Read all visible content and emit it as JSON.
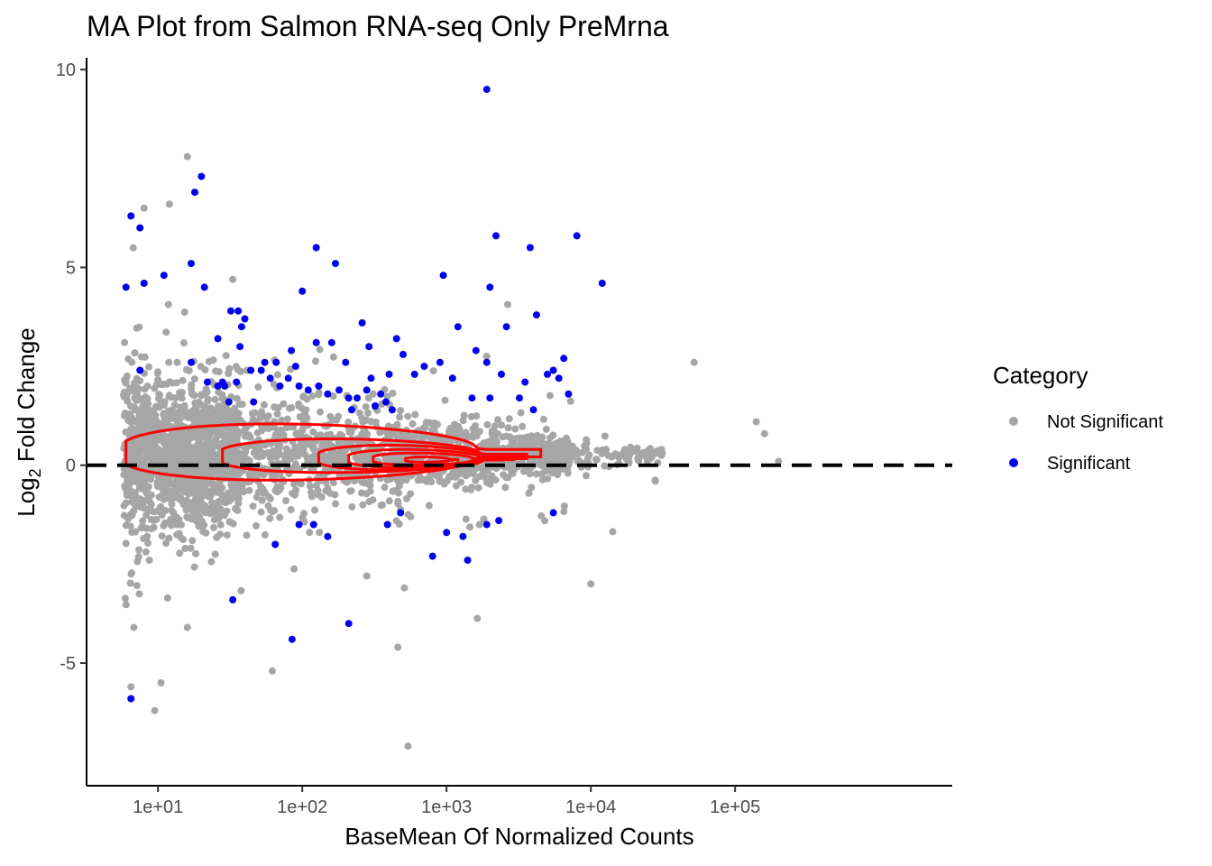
{
  "chart_data": {
    "type": "scatter",
    "title": "MA Plot from Salmon RNA-seq Only PreMrna",
    "xlabel": "BaseMean Of Normalized Counts",
    "ylabel_main": "Log",
    "ylabel_sub": "2",
    "ylabel_rest": " Fold Change",
    "x_scale": "log10",
    "xlim": [
      3.2,
      3200000
    ],
    "ylim": [
      -8.1,
      10.3
    ],
    "x_ticks": [
      {
        "value": 10,
        "label": "1e+01"
      },
      {
        "value": 100,
        "label": "1e+02"
      },
      {
        "value": 1000,
        "label": "1e+03"
      },
      {
        "value": 10000,
        "label": "1e+04"
      },
      {
        "value": 100000,
        "label": "1e+05"
      }
    ],
    "y_ticks": [
      {
        "value": -5,
        "label": "-5"
      },
      {
        "value": 0,
        "label": "0"
      },
      {
        "value": 5,
        "label": "5"
      },
      {
        "value": 10,
        "label": "10"
      }
    ],
    "reference_line": {
      "y": 0,
      "style": "dashed",
      "color": "#000000"
    },
    "grid": false,
    "legend": {
      "title": "Category",
      "position": "right",
      "entries": [
        {
          "label": "Not Significant",
          "color": "#a6a6a6"
        },
        {
          "label": "Significant",
          "color": "#0000ee"
        }
      ]
    },
    "series": [
      {
        "name": "Significant",
        "color": "#0000ee",
        "points": [
          [
            1900,
            9.5
          ],
          [
            20,
            7.3
          ],
          [
            18,
            6.9
          ],
          [
            6.5,
            6.3
          ],
          [
            7.5,
            6.0
          ],
          [
            6,
            4.5
          ],
          [
            2200,
            5.8
          ],
          [
            3800,
            5.5
          ],
          [
            8000,
            5.8
          ],
          [
            12000,
            4.6
          ],
          [
            2000,
            4.5
          ],
          [
            950,
            4.8
          ],
          [
            125,
            5.5
          ],
          [
            170,
            5.1
          ],
          [
            100,
            4.4
          ],
          [
            8,
            4.6
          ],
          [
            11,
            4.8
          ],
          [
            17,
            5.1
          ],
          [
            21,
            4.5
          ],
          [
            36,
            3.9
          ],
          [
            40,
            3.7
          ],
          [
            38,
            3.5
          ],
          [
            32,
            3.9
          ],
          [
            260,
            3.6
          ],
          [
            2600,
            3.5
          ],
          [
            4200,
            3.8
          ],
          [
            1200,
            3.5
          ],
          [
            450,
            3.2
          ],
          [
            290,
            3.0
          ],
          [
            160,
            3.1
          ],
          [
            125,
            3.1
          ],
          [
            84,
            2.9
          ],
          [
            37,
            3.0
          ],
          [
            26,
            3.2
          ],
          [
            17,
            2.6
          ],
          [
            7.5,
            2.4
          ],
          [
            1600,
            2.9
          ],
          [
            1900,
            2.6
          ],
          [
            2400,
            2.3
          ],
          [
            6500,
            2.7
          ],
          [
            5500,
            2.4
          ],
          [
            5000,
            2.3
          ],
          [
            6000,
            2.2
          ],
          [
            3500,
            2.1
          ],
          [
            200,
            2.6
          ],
          [
            300,
            2.2
          ],
          [
            400,
            2.3
          ],
          [
            500,
            2.8
          ],
          [
            600,
            2.3
          ],
          [
            700,
            2.5
          ],
          [
            900,
            2.6
          ],
          [
            1100,
            2.2
          ],
          [
            1500,
            1.7
          ],
          [
            2000,
            1.7
          ],
          [
            3200,
            1.7
          ],
          [
            4000,
            1.4
          ],
          [
            7000,
            1.8
          ],
          [
            44,
            2.4
          ],
          [
            52,
            2.4
          ],
          [
            35,
            2.1
          ],
          [
            29,
            2.0
          ],
          [
            60,
            2.2
          ],
          [
            70,
            2.0
          ],
          [
            80,
            2.2
          ],
          [
            95,
            2.0
          ],
          [
            110,
            1.9
          ],
          [
            130,
            2.0
          ],
          [
            150,
            1.8
          ],
          [
            180,
            1.9
          ],
          [
            210,
            1.7
          ],
          [
            240,
            1.7
          ],
          [
            280,
            1.9
          ],
          [
            320,
            1.5
          ],
          [
            350,
            1.8
          ],
          [
            380,
            1.6
          ],
          [
            420,
            1.4
          ],
          [
            220,
            1.4
          ],
          [
            90,
            2.5
          ],
          [
            66,
            2.6
          ],
          [
            55,
            2.6
          ],
          [
            22,
            2.1
          ],
          [
            26,
            2.0
          ],
          [
            28,
            2.1
          ],
          [
            31,
            1.6
          ],
          [
            46,
            1.6
          ],
          [
            120,
            -1.5
          ],
          [
            95,
            -1.5
          ],
          [
            150,
            -1.8
          ],
          [
            390,
            -1.5
          ],
          [
            480,
            -1.2
          ],
          [
            1000,
            -1.7
          ],
          [
            1300,
            -1.8
          ],
          [
            1900,
            -1.5
          ],
          [
            2300,
            -1.4
          ],
          [
            5500,
            -1.2
          ],
          [
            65,
            -2.0
          ],
          [
            85,
            -4.4
          ],
          [
            33,
            -3.4
          ],
          [
            210,
            -4.0
          ],
          [
            6.5,
            -5.9
          ],
          [
            1400,
            -2.4
          ],
          [
            800,
            -2.3
          ]
        ]
      }
    ],
    "contour": {
      "color": "#ff0000",
      "levels": [
        {
          "x_from": 6.0,
          "x_to": 4500,
          "y_center": 0.3,
          "half_height": 0.75
        },
        {
          "x_from": 28,
          "x_to": 3600,
          "y_center": 0.22,
          "half_height": 0.45
        },
        {
          "x_from": 130,
          "x_to": 2900,
          "y_center": 0.18,
          "half_height": 0.33
        },
        {
          "x_from": 210,
          "x_to": 2500,
          "y_center": 0.16,
          "half_height": 0.24
        },
        {
          "x_from": 310,
          "x_to": 2000,
          "y_center": 0.15,
          "half_height": 0.16
        },
        {
          "x_from": 520,
          "x_to": 1200,
          "y_center": 0.14,
          "half_height": 0.07
        }
      ]
    }
  }
}
